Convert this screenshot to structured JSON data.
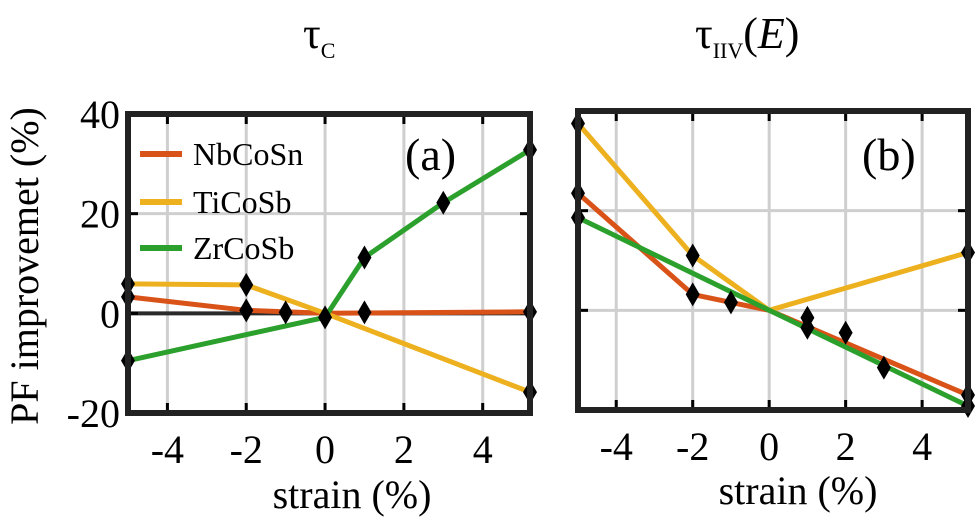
{
  "chart_data": [
    {
      "type": "line",
      "panel_label": "(a)",
      "title": "τ",
      "title_subscript": "C",
      "xlabel": "strain (%)",
      "ylabel": "PF improvemet (%)",
      "xlim": [
        -5,
        5.2
      ],
      "ylim": [
        -20,
        40
      ],
      "xticks": [
        -4,
        -2,
        0,
        2,
        4
      ],
      "yticks": [
        -20,
        0,
        20,
        40
      ],
      "xtick_labels": [
        "-4",
        "-2",
        "0",
        "2",
        "4"
      ],
      "ytick_labels": [
        "-20",
        "0",
        "20",
        "40"
      ],
      "grid": true,
      "legend": "top-left",
      "series": [
        {
          "name": "NbCoSn",
          "color": "#d95319",
          "x": [
            -5,
            -2,
            0,
            5.2
          ],
          "y": [
            3.3,
            0.6,
            0,
            0.3
          ],
          "markers": [
            [
              -5,
              3.3
            ],
            [
              -2,
              0.6
            ],
            [
              -1,
              0.2
            ],
            [
              1,
              0.2
            ],
            [
              5.2,
              0.3
            ]
          ]
        },
        {
          "name": "TiCoSb",
          "color": "#edb120",
          "x": [
            -5,
            -2,
            0,
            5.2
          ],
          "y": [
            5.9,
            5.7,
            0,
            -15.8
          ],
          "markers": [
            [
              -5,
              5.9
            ],
            [
              -2,
              5.7
            ],
            [
              5.2,
              -15.8
            ]
          ]
        },
        {
          "name": "ZrCoSb",
          "color": "#2ca02c",
          "x": [
            -5,
            0,
            1,
            3,
            5.2
          ],
          "y": [
            -9.5,
            -0.8,
            11.2,
            22.2,
            32.8
          ],
          "markers": [
            [
              -5,
              -9.5
            ],
            [
              0,
              -0.8
            ],
            [
              1,
              11.2
            ],
            [
              3,
              22.2
            ],
            [
              5.2,
              32.8
            ]
          ]
        }
      ]
    },
    {
      "type": "line",
      "panel_label": "(b)",
      "title": "τ",
      "title_subscript": "IIV",
      "title_suffix": "(",
      "title_italic": "E",
      "title_end": ")",
      "xlabel": "strain (%)",
      "xlim": [
        -5,
        5.2
      ],
      "ylim": [
        -20,
        40
      ],
      "xticks": [
        -4,
        -2,
        0,
        2,
        4
      ],
      "xtick_labels": [
        "-4",
        "-2",
        "0",
        "2",
        "4"
      ],
      "grid": true,
      "series": [
        {
          "name": "NbCoSn",
          "color": "#d95319",
          "x": [
            -5,
            -2,
            0,
            5.2
          ],
          "y": [
            23.5,
            3.2,
            0,
            -17
          ],
          "markers": [
            [
              -5,
              23.5
            ],
            [
              -2,
              3.2
            ],
            [
              -1,
              1.6
            ],
            [
              1,
              -1.5
            ],
            [
              2,
              -4.5
            ],
            [
              3,
              -11.5
            ],
            [
              5.2,
              -17
            ]
          ]
        },
        {
          "name": "TiCoSb",
          "color": "#edb120",
          "x": [
            -5,
            -2,
            0,
            5.2
          ],
          "y": [
            37.5,
            11,
            0,
            11.6
          ],
          "markers": [
            [
              -5,
              37.5
            ],
            [
              -2,
              11
            ],
            [
              5.2,
              11.6
            ]
          ]
        },
        {
          "name": "ZrCoSb",
          "color": "#2ca02c",
          "x": [
            -5,
            0,
            5.2
          ],
          "y": [
            18.6,
            0,
            -19.2
          ],
          "markers": [
            [
              -5,
              18.6
            ],
            [
              1,
              -3.5
            ],
            [
              5.2,
              -19.2
            ]
          ]
        }
      ]
    }
  ]
}
